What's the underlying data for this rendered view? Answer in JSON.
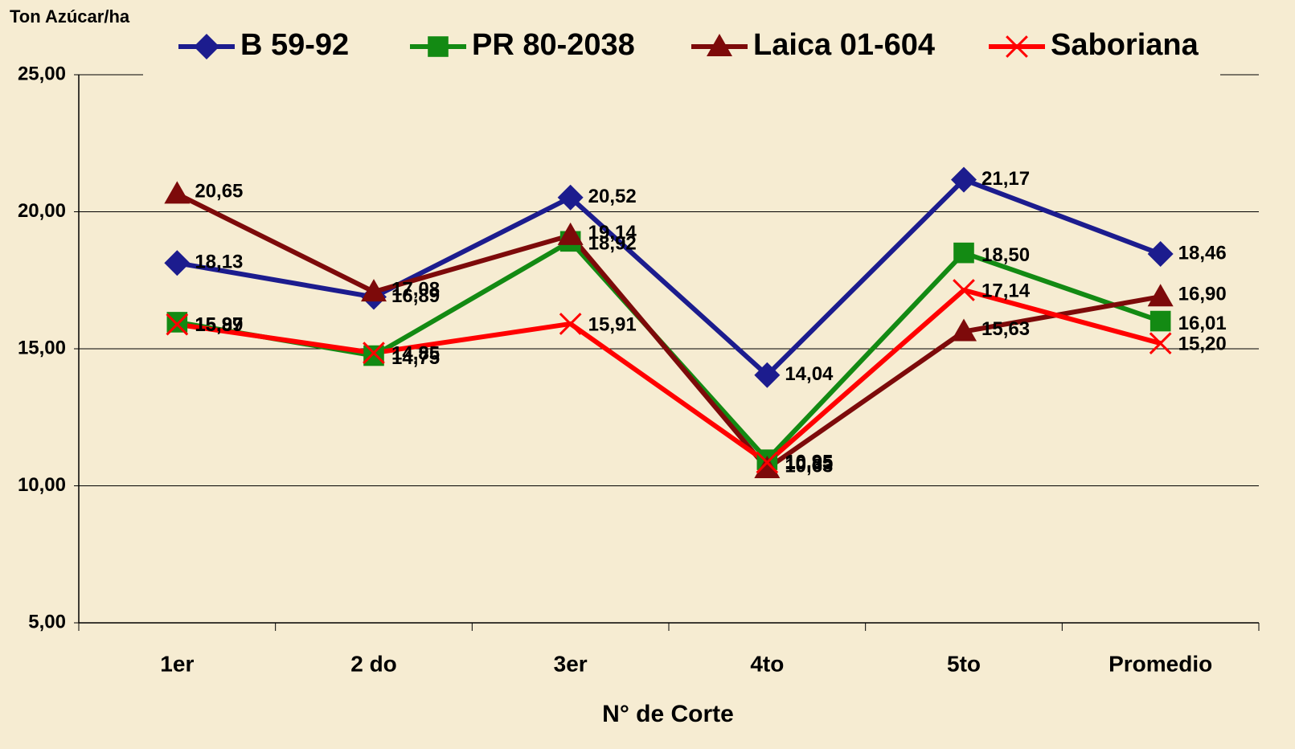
{
  "chart_data": {
    "type": "line",
    "y_label": "Ton Azúcar/ha",
    "x_label": "N° de Corte",
    "categories": [
      "1er",
      "2 do",
      "3er",
      "4to",
      "5to",
      "Promedio"
    ],
    "series": [
      {
        "name": "B 59-92",
        "color": "#1c1c8e",
        "marker": "diamond",
        "values": [
          18.13,
          16.89,
          20.52,
          14.04,
          21.17,
          18.46
        ],
        "value_labels": [
          "18,13",
          "16,89",
          "20,52",
          "14,04",
          "21,17",
          "18,46"
        ]
      },
      {
        "name": "PR 80-2038",
        "color": "#138a13",
        "marker": "square",
        "values": [
          15.97,
          14.75,
          18.92,
          10.95,
          18.5,
          16.01
        ],
        "value_labels": [
          "15,97",
          "14,75",
          "18,92",
          "10,95",
          "18,50",
          "16,01"
        ]
      },
      {
        "name": "Laica 01-604",
        "color": "#7d0a0a",
        "marker": "triangle",
        "values": [
          20.65,
          17.08,
          19.14,
          10.63,
          15.63,
          16.9
        ],
        "value_labels": [
          "20,65",
          "17,08",
          "19,14",
          "10,63",
          "15,63",
          "16,90"
        ]
      },
      {
        "name": "Saboriana",
        "color": "#ff0000",
        "marker": "x",
        "values": [
          15.89,
          14.85,
          15.91,
          10.85,
          17.14,
          15.2
        ],
        "value_labels": [
          "15,89",
          "14,85",
          "15,91",
          "10,85",
          "17,14",
          "15,20"
        ]
      }
    ],
    "ylim": [
      5,
      25
    ],
    "yticks": [
      {
        "value": 5,
        "label": "5,00"
      },
      {
        "value": 10,
        "label": "10,00"
      },
      {
        "value": 15,
        "label": "15,00"
      },
      {
        "value": 20,
        "label": "20,00"
      },
      {
        "value": 25,
        "label": "25,00"
      }
    ],
    "grid": true,
    "legend": "top"
  }
}
